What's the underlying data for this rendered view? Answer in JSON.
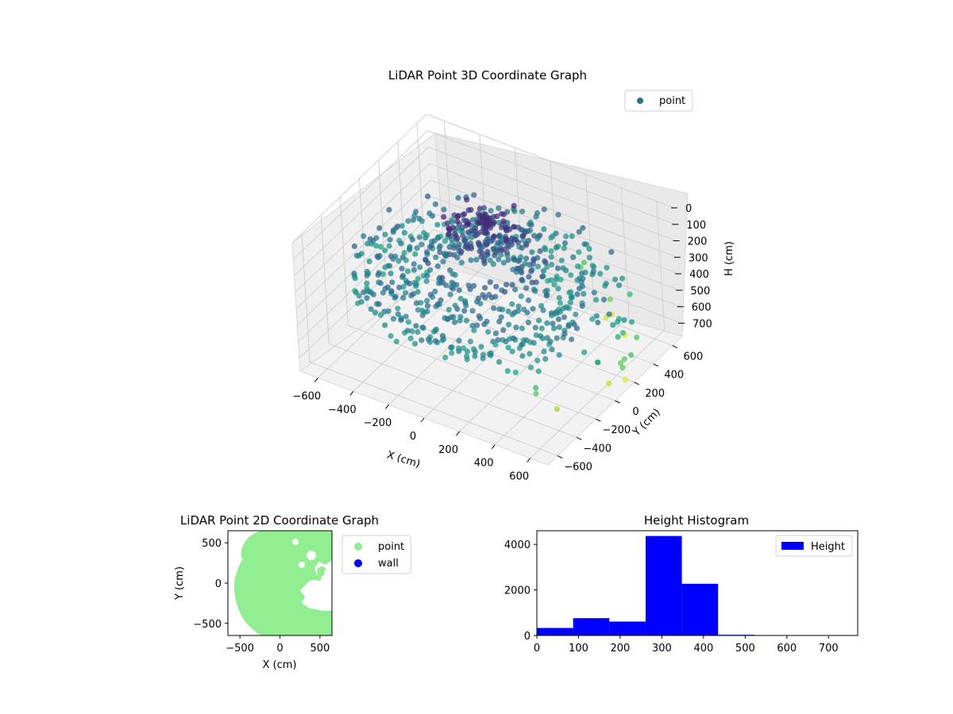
{
  "chart_data": [
    {
      "type": "scatter",
      "subtype": "3d",
      "title": "LiDAR Point 3D Coordinate Graph",
      "xlabel": "X (cm)",
      "ylabel": "Y (cm)",
      "zlabel": "H (cm)",
      "xlim": [
        -700,
        700
      ],
      "ylim": [
        -700,
        700
      ],
      "zlim": [
        0,
        780
      ],
      "z_axis_inverted": true,
      "x_ticks": [
        "−600",
        "−400",
        "−200",
        "0",
        "200",
        "400",
        "600"
      ],
      "y_ticks": [
        "−600",
        "−400",
        "−200",
        "0",
        "200",
        "400",
        "600"
      ],
      "z_ticks": [
        "0",
        "100",
        "200",
        "300",
        "400",
        "500",
        "600",
        "700"
      ],
      "x_tick_values": [
        -600,
        -400,
        -200,
        0,
        200,
        400,
        600
      ],
      "y_tick_values": [
        -600,
        -400,
        -200,
        0,
        200,
        400,
        600
      ],
      "z_tick_values": [
        0,
        100,
        200,
        300,
        400,
        500,
        600,
        700
      ],
      "colormap": "viridis (colored by height)",
      "legend": {
        "label": "point",
        "color": "#2d708e",
        "placement": "upper-right"
      },
      "grid": true,
      "point_count_estimate": 8300,
      "description_of_shape": "roughly circular point cloud of radius ~650 cm, mostly between H 250 and 450 cm, with a dense cluster near the center-back and sparse outlier points at large radius"
    },
    {
      "type": "scatter",
      "title": "LiDAR Point 2D Coordinate Graph",
      "xlabel": "X (cm)",
      "ylabel": "Y (cm)",
      "xlim": [
        -650,
        650
      ],
      "ylim": [
        -650,
        650
      ],
      "x_ticks": [
        "−500",
        "0",
        "500"
      ],
      "y_ticks": [
        "−500",
        "0",
        "500"
      ],
      "x_tick_values": [
        -500,
        0,
        500
      ],
      "y_tick_values": [
        -500,
        0,
        500
      ],
      "series": [
        {
          "name": "point",
          "color": "#90ee90"
        },
        {
          "name": "wall",
          "color": "#0000ff"
        }
      ],
      "legend_placement": "outside-right"
    },
    {
      "type": "bar",
      "subtype": "histogram",
      "title": "Height Histogram",
      "xlim": [
        0,
        770
      ],
      "ylim": [
        0,
        4600
      ],
      "x_ticks": [
        "0",
        "100",
        "200",
        "300",
        "400",
        "500",
        "600",
        "700"
      ],
      "y_ticks": [
        "0",
        "2000",
        "4000"
      ],
      "x_tick_values": [
        0,
        100,
        200,
        300,
        400,
        500,
        600,
        700
      ],
      "y_tick_values": [
        0,
        2000,
        4000
      ],
      "bin_edges": [
        0,
        87,
        174,
        261,
        348,
        435,
        522,
        609,
        696,
        783
      ],
      "values": [
        330,
        760,
        610,
        4370,
        2270,
        30,
        5,
        3,
        2
      ],
      "series": [
        {
          "name": "Height",
          "color": "#0000ff"
        }
      ],
      "legend_placement": "upper-right"
    }
  ]
}
